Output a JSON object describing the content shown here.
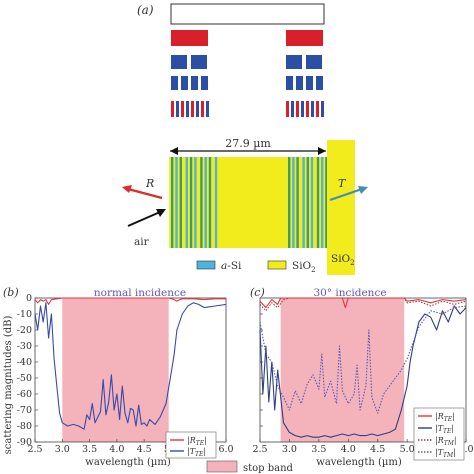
{
  "panel_a": {
    "label": "(a)",
    "dimension": "27.9 µm",
    "r_label": "R",
    "t_label": "T",
    "air": "air",
    "sio2_side": "SiO",
    "sio2_side_sub": "2",
    "legend": {
      "asi": "a-Si",
      "sio2": "SiO",
      "sio2_sub": "2"
    },
    "colors": {
      "red": "#d9202a",
      "blue": "#2a4fa5",
      "yellow": "#f3ec1c",
      "green": "#3a9a7a",
      "cyan": "#4db4dc"
    }
  },
  "panel_b": {
    "label": "(b)",
    "title": "normal incidence",
    "xlabel": "wavelength (µm)",
    "ylabel": "scattering magnitudes (dB)",
    "legend": [
      {
        "sym": "|R",
        "sub": "TE",
        "end": "|"
      },
      {
        "sym": "|T",
        "sub": "TE",
        "end": "|"
      }
    ]
  },
  "panel_c": {
    "label": "(c)",
    "title": "30° incidence",
    "xlabel": "wavelength (µm)",
    "legend": [
      {
        "sym": "|R",
        "sub": "TE",
        "end": "|"
      },
      {
        "sym": "|T",
        "sub": "TE",
        "end": "|"
      },
      {
        "sym": "|R",
        "sub": "TM",
        "end": "|"
      },
      {
        "sym": "|T",
        "sub": "TM",
        "end": "|"
      }
    ]
  },
  "bottom_legend": {
    "stop_band": "stop band"
  },
  "chart_data": [
    {
      "type": "line",
      "title": "normal incidence",
      "xlabel": "wavelength (µm)",
      "ylabel": "scattering magnitudes (dB)",
      "xlim": [
        2.5,
        6.0
      ],
      "ylim": [
        -90,
        0
      ],
      "xticks": [
        "2.5",
        "3.0",
        "3.5",
        "4.0",
        "4.5",
        "5.0",
        "5.5",
        "6.0"
      ],
      "yticks": [
        "0",
        "-10",
        "-20",
        "-30",
        "-40",
        "-50",
        "-60",
        "-70",
        "-80",
        "-90"
      ],
      "stop_band": [
        3.0,
        4.95
      ],
      "series": [
        {
          "name": "|R_TE|",
          "color": "#e8343a",
          "style": "solid",
          "x": [
            2.5,
            2.55,
            2.6,
            2.65,
            2.7,
            2.75,
            2.8,
            2.9,
            3.0,
            3.5,
            4.0,
            4.5,
            4.95,
            5.05,
            5.1,
            5.15,
            5.2,
            5.4,
            5.6,
            5.8,
            6.0
          ],
          "y": [
            -1,
            -3,
            -1,
            -2,
            -1,
            -4,
            -1,
            -0.5,
            0,
            0,
            0,
            0,
            0,
            -1,
            -2,
            -1,
            -0.5,
            -0.5,
            -1,
            -0.5,
            -0.5
          ]
        },
        {
          "name": "|T_TE|",
          "color": "#3a4aa8",
          "style": "solid",
          "x": [
            2.5,
            2.55,
            2.6,
            2.65,
            2.7,
            2.75,
            2.8,
            2.85,
            2.9,
            2.95,
            3.0,
            3.1,
            3.2,
            3.3,
            3.4,
            3.45,
            3.5,
            3.55,
            3.6,
            3.7,
            3.75,
            3.8,
            3.85,
            3.9,
            3.95,
            4.0,
            4.05,
            4.1,
            4.15,
            4.2,
            4.25,
            4.3,
            4.35,
            4.4,
            4.45,
            4.5,
            4.55,
            4.6,
            4.7,
            4.8,
            4.9,
            5.0,
            5.05,
            5.1,
            5.2,
            5.3,
            5.4,
            5.5,
            5.6,
            5.8,
            6.0
          ],
          "y": [
            -10,
            -20,
            -5,
            -15,
            -3,
            -25,
            -10,
            -38,
            -55,
            -72,
            -78,
            -80,
            -79,
            -80,
            -82,
            -73,
            -76,
            -66,
            -78,
            -71,
            -51,
            -73,
            -65,
            -48,
            -70,
            -60,
            -76,
            -55,
            -72,
            -78,
            -69,
            -70,
            -80,
            -67,
            -79,
            -78,
            -80,
            -76,
            -79,
            -74,
            -66,
            -46,
            -35,
            -20,
            -10,
            -5,
            -3,
            -4,
            -6,
            -5,
            -4
          ]
        }
      ]
    },
    {
      "type": "line",
      "title": "30° incidence",
      "xlabel": "wavelength (µm)",
      "ylabel": "",
      "xlim": [
        2.5,
        6.0
      ],
      "ylim": [
        -90,
        0
      ],
      "xticks": [
        "2.5",
        "3.0",
        "3.5",
        "4.0",
        "4.5",
        "5.0",
        "5.5",
        "6.0"
      ],
      "yticks": [],
      "stop_band": [
        2.85,
        4.95
      ],
      "series": [
        {
          "name": "|R_TE|",
          "color": "#e8343a",
          "style": "solid",
          "x": [
            2.5,
            2.6,
            2.7,
            2.8,
            2.85,
            3.0,
            3.5,
            3.9,
            3.95,
            4.0,
            4.5,
            4.95,
            5.0,
            5.2,
            5.4,
            5.6,
            5.8,
            6.0
          ],
          "y": [
            -2,
            -6,
            -1,
            -4,
            0,
            0,
            0,
            0,
            -6,
            0,
            0,
            0,
            -2,
            -1,
            -3,
            -1,
            -2,
            -1
          ]
        },
        {
          "name": "|T_TE|",
          "color": "#2f3f80",
          "style": "solid",
          "x": [
            2.5,
            2.55,
            2.6,
            2.65,
            2.7,
            2.75,
            2.8,
            2.9,
            3.0,
            3.1,
            3.2,
            3.3,
            3.4,
            3.5,
            3.6,
            3.7,
            3.8,
            3.9,
            4.0,
            4.1,
            4.2,
            4.3,
            4.4,
            4.5,
            4.6,
            4.7,
            4.8,
            4.9,
            5.0,
            5.05,
            5.1,
            5.2,
            5.3,
            5.4,
            5.5,
            5.6,
            5.7,
            5.8,
            5.9,
            6.0
          ],
          "y": [
            -20,
            -60,
            -30,
            -65,
            -40,
            -70,
            -45,
            -78,
            -84,
            -86,
            -87,
            -86,
            -87,
            -87,
            -86,
            -87,
            -86,
            -85,
            -86,
            -85,
            -86,
            -86,
            -85,
            -86,
            -85,
            -84,
            -82,
            -70,
            -55,
            -40,
            -30,
            -15,
            -10,
            -12,
            -20,
            -8,
            -15,
            -5,
            -10,
            -6
          ]
        },
        {
          "name": "|R_TM|",
          "color": "#b2364a",
          "style": "dotted",
          "x": [
            2.5,
            2.6,
            2.7,
            2.8,
            2.9,
            3.0,
            3.5,
            4.0,
            4.5,
            4.95,
            5.0,
            5.2,
            5.4,
            5.6,
            5.8,
            6.0
          ],
          "y": [
            -4,
            -8,
            -3,
            -6,
            -1,
            0,
            0,
            0,
            0,
            0,
            -3,
            -2,
            -5,
            -2,
            -4,
            -2
          ]
        },
        {
          "name": "|T_TM|",
          "color": "#5a57b8",
          "style": "dotted",
          "x": [
            2.5,
            2.6,
            2.7,
            2.8,
            2.9,
            3.0,
            3.1,
            3.2,
            3.3,
            3.4,
            3.5,
            3.55,
            3.6,
            3.7,
            3.8,
            3.85,
            3.9,
            4.0,
            4.1,
            4.15,
            4.2,
            4.3,
            4.35,
            4.4,
            4.5,
            4.6,
            4.7,
            4.8,
            4.9,
            5.0,
            5.1,
            5.2,
            5.4,
            5.6,
            5.8,
            6.0
          ],
          "y": [
            -15,
            -35,
            -40,
            -55,
            -62,
            -70,
            -58,
            -66,
            -54,
            -48,
            -57,
            -35,
            -62,
            -52,
            -66,
            -30,
            -58,
            -66,
            -60,
            -42,
            -70,
            -55,
            -20,
            -62,
            -72,
            -60,
            -55,
            -50,
            -45,
            -38,
            -28,
            -18,
            -8,
            -10,
            -6,
            -5
          ]
        }
      ]
    }
  ]
}
